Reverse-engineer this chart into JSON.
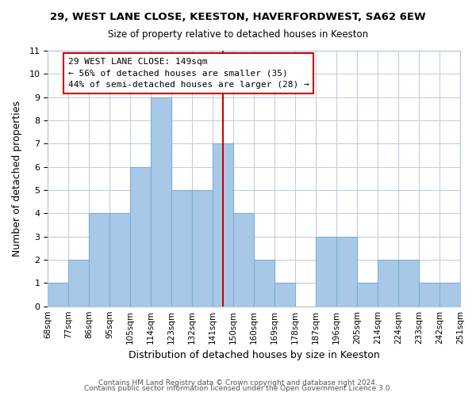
{
  "title1": "29, WEST LANE CLOSE, KEESTON, HAVERFORDWEST, SA62 6EW",
  "title2": "Size of property relative to detached houses in Keeston",
  "xlabel": "Distribution of detached houses by size in Keeston",
  "ylabel": "Number of detached properties",
  "bin_labels": [
    "68sqm",
    "77sqm",
    "86sqm",
    "95sqm",
    "105sqm",
    "114sqm",
    "123sqm",
    "132sqm",
    "141sqm",
    "150sqm",
    "160sqm",
    "169sqm",
    "178sqm",
    "187sqm",
    "196sqm",
    "205sqm",
    "214sqm",
    "224sqm",
    "233sqm",
    "242sqm",
    "251sqm"
  ],
  "bar_heights": [
    1,
    2,
    4,
    4,
    6,
    9,
    5,
    5,
    7,
    4,
    2,
    1,
    0,
    3,
    3,
    1,
    2,
    2,
    1,
    1
  ],
  "bar_color": "#a8c8e8",
  "bar_edge_color": "#7ab0d4",
  "vline_x": 8.5,
  "vline_color": "#cc0000",
  "annotation_title": "29 WEST LANE CLOSE: 149sqm",
  "annotation_line1": "← 56% of detached houses are smaller (35)",
  "annotation_line2": "44% of semi-detached houses are larger (28) →",
  "annotation_box_color": "#ffffff",
  "annotation_box_edge": "#cc0000",
  "ylim": [
    0,
    11
  ],
  "yticks": [
    0,
    1,
    2,
    3,
    4,
    5,
    6,
    7,
    8,
    9,
    10,
    11
  ],
  "footer1": "Contains HM Land Registry data © Crown copyright and database right 2024.",
  "footer2": "Contains public sector information licensed under the Open Government Licence 3.0.",
  "background_color": "#ffffff",
  "grid_color": "#c0d0e0"
}
